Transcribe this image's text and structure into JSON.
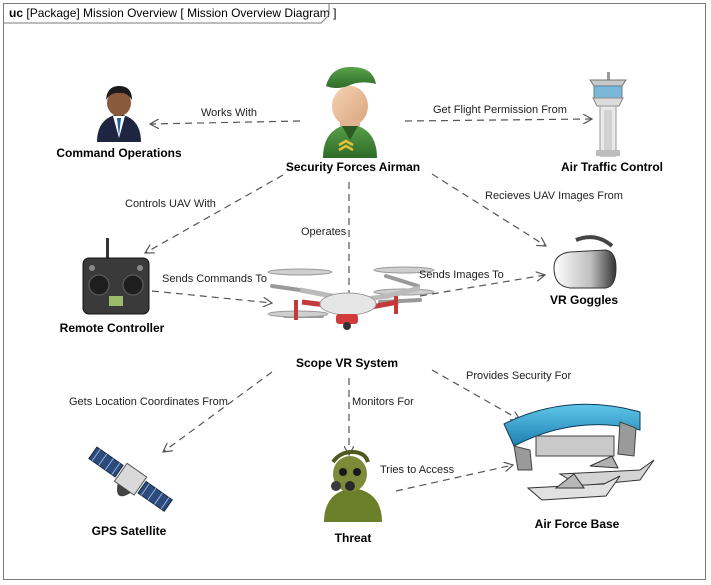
{
  "frame": {
    "kind": "uc",
    "title": "[Package] Mission Overview [ Mission Overview Diagram ]"
  },
  "nodes": {
    "command_operations": "Command Operations",
    "security_forces_airman": "Security Forces Airman",
    "air_traffic_control": "Air Traffic Control",
    "remote_controller": "Remote Controller",
    "scope_vr_system": "Scope VR System",
    "vr_goggles": "VR Goggles",
    "gps_satellite": "GPS Satellite",
    "threat": "Threat",
    "air_force_base": "Air Force Base"
  },
  "relations": {
    "works_with": "Works With",
    "get_flight_permission_from": "Get Flight Permission From",
    "controls_uav_with": "Controls UAV With",
    "operates": "Operates",
    "recieves_uav_images_from": "Recieves UAV Images From",
    "sends_commands_to": "Sends Commands To",
    "sends_images_to": "Sends Images To",
    "gets_location_coordinates_from": "Gets Location Coordinates From",
    "monitors_for": "Monitors For",
    "provides_security_for": "Provides Security For",
    "tries_to_access": "Tries to Access"
  },
  "colors": {
    "edge": "#555555",
    "frame": "#7a7a7a"
  }
}
